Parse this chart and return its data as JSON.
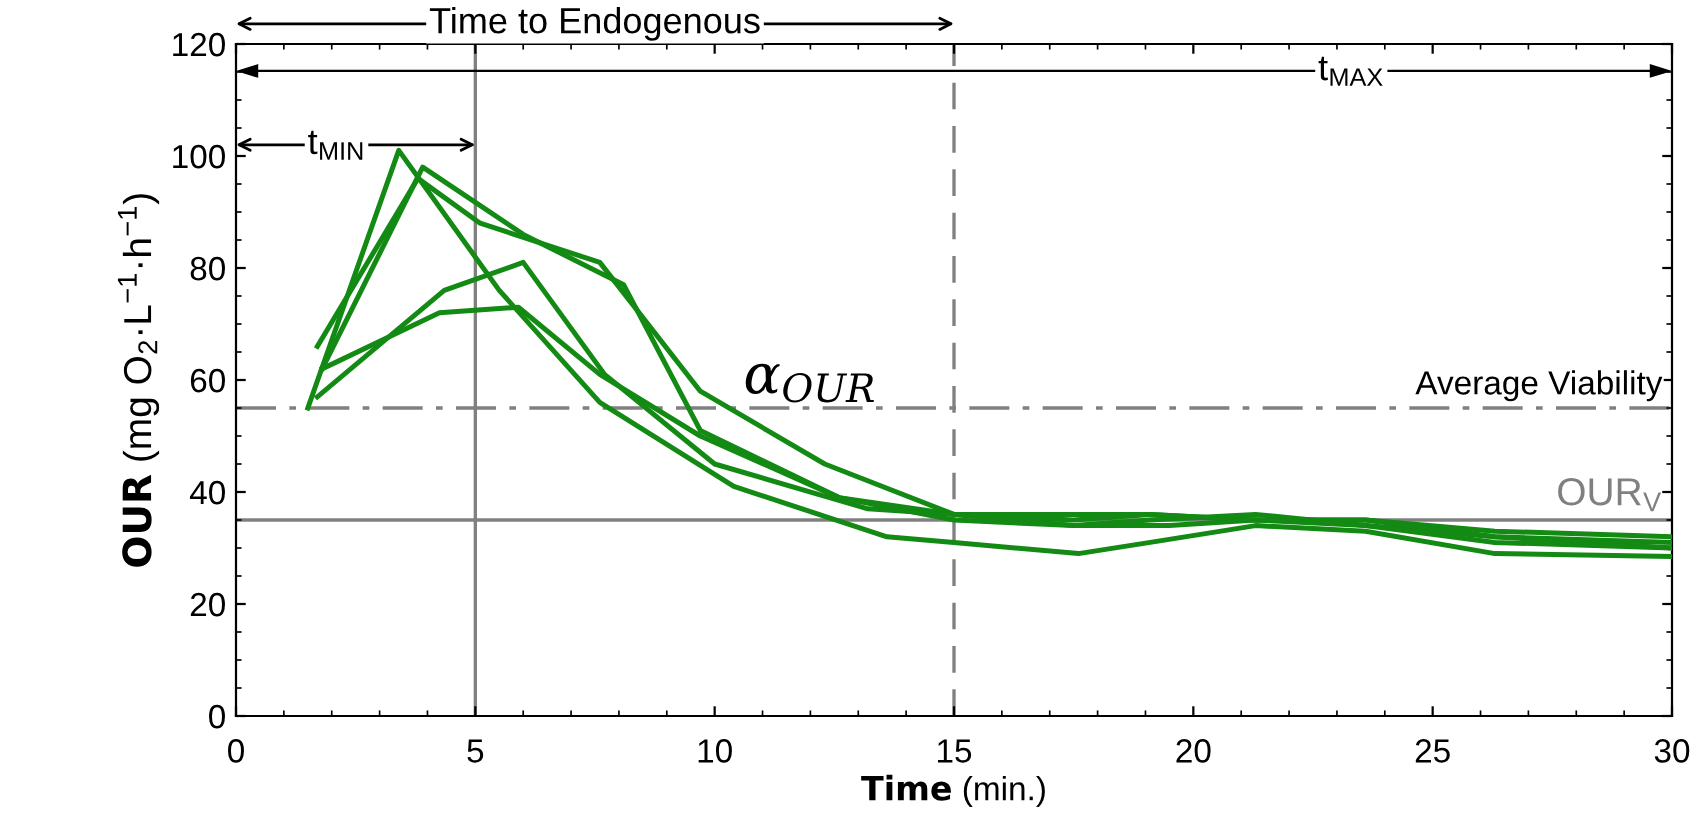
{
  "chart_data": {
    "type": "line",
    "xlabel": "Time (min.)",
    "ylabel": "OUR (mg O$_{2}$·L$^{−1}$·h$^{−1}$)",
    "xlim": [
      0,
      30
    ],
    "ylim": [
      0,
      120
    ],
    "xticks": [
      0,
      5,
      10,
      15,
      20,
      25,
      30
    ],
    "yticks": [
      0,
      20,
      40,
      60,
      80,
      100,
      120
    ],
    "grid": false,
    "legend": false,
    "line_style": "solid",
    "marker": "none",
    "series": [
      {
        "color": "#138a13",
        "x": [
          1.5,
          3.4,
          5.5,
          7.6,
          10.4,
          13.6,
          15,
          17.6,
          19.1,
          21.3,
          23.6,
          26.3,
          30
        ],
        "values": [
          55,
          101,
          76,
          56,
          41,
          32,
          31,
          29,
          31,
          34,
          33,
          29,
          28.5
        ]
      },
      {
        "color": "#138a13",
        "x": [
          1.7,
          3.8,
          5.1,
          7.6,
          9.7,
          12.3,
          15,
          17.5,
          19.1,
          21.3,
          23.6,
          26.3,
          30
        ],
        "values": [
          66,
          96,
          88,
          81,
          58,
          45,
          36,
          35,
          36,
          35,
          35,
          33,
          32
        ]
      },
      {
        "color": "#138a13",
        "x": [
          1.8,
          3.9,
          6.0,
          8.1,
          9.7,
          12.6,
          15,
          17.5,
          19.5,
          21.3,
          23.6,
          26.3,
          30
        ],
        "values": [
          62,
          98,
          86,
          77,
          51,
          39,
          36,
          34,
          34,
          35,
          34,
          32,
          31
        ]
      },
      {
        "color": "#138a13",
        "x": [
          1.7,
          4.35,
          6.0,
          7.7,
          10.0,
          13.2,
          15,
          17.5,
          19.1,
          21.3,
          23.6,
          26.3,
          30
        ],
        "values": [
          57,
          76,
          81,
          61,
          45,
          37,
          36,
          36,
          36,
          35,
          35,
          32,
          30
        ]
      },
      {
        "color": "#138a13",
        "x": [
          1.8,
          4.25,
          5.9,
          7.6,
          9.7,
          12.6,
          15,
          17.5,
          19.1,
          21.3,
          23.6,
          26.3,
          30
        ],
        "values": [
          62,
          72,
          73,
          61,
          50,
          39,
          35,
          34,
          35,
          36,
          34,
          31,
          30
        ]
      }
    ],
    "ref_lines": [
      {
        "axis": "y",
        "value": 55,
        "label": "Average Viability",
        "color": "#808080",
        "line_style": "dashdot"
      },
      {
        "axis": "y",
        "value": 35,
        "label": "OUR$_{V}$",
        "color": "#808080",
        "line_style": "solid"
      },
      {
        "axis": "x",
        "value": 5,
        "color": "#808080",
        "line_style": "solid"
      },
      {
        "axis": "x",
        "value": 15,
        "color": "#808080",
        "line_style": "dashed"
      }
    ],
    "annotations": [
      "Time to Endogenous",
      "t$_{MAX}$",
      "t$_{MIN}$",
      "α$_{OUR}$"
    ]
  }
}
